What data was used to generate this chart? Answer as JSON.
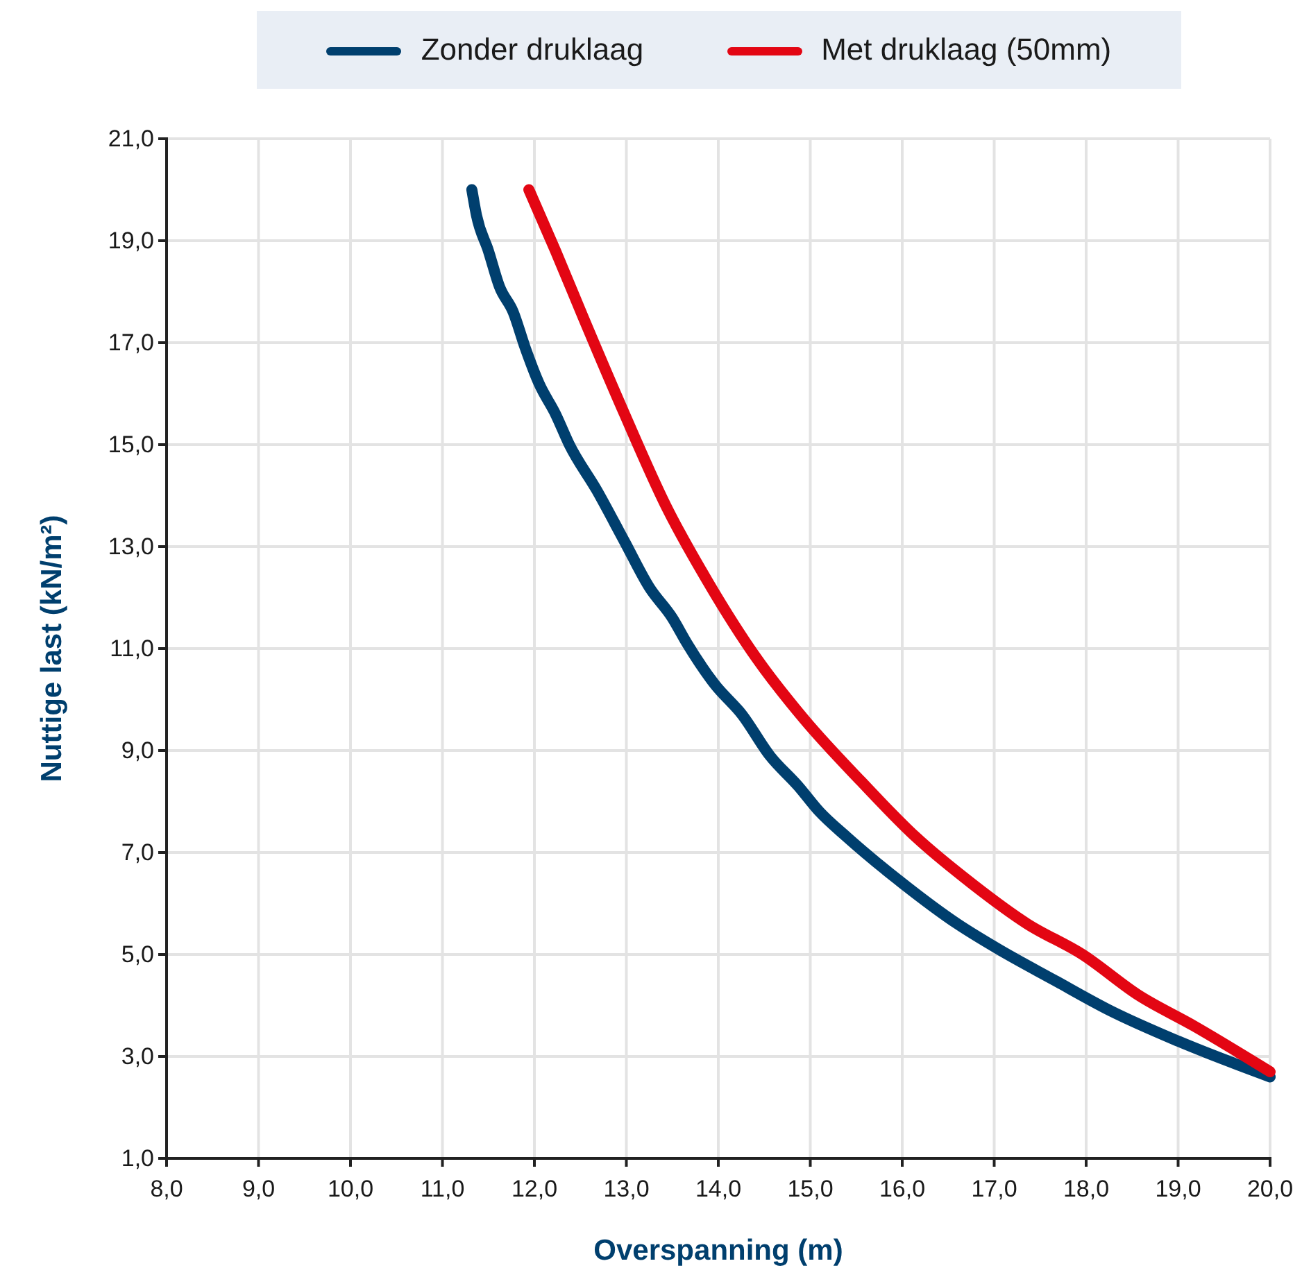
{
  "chart_data": {
    "type": "line",
    "xlabel": "Overspanning (m)",
    "ylabel": "Nuttige last (kN/m²)",
    "xlim": [
      8,
      20
    ],
    "ylim": [
      1,
      21
    ],
    "xticks": [
      {
        "value": 8,
        "label": "8,0"
      },
      {
        "value": 9,
        "label": "9,0"
      },
      {
        "value": 10,
        "label": "10,0"
      },
      {
        "value": 11,
        "label": "11,0"
      },
      {
        "value": 12,
        "label": "12,0"
      },
      {
        "value": 13,
        "label": "13,0"
      },
      {
        "value": 14,
        "label": "14,0"
      },
      {
        "value": 15,
        "label": "15,0"
      },
      {
        "value": 16,
        "label": "16,0"
      },
      {
        "value": 17,
        "label": "17,0"
      },
      {
        "value": 18,
        "label": "18,0"
      },
      {
        "value": 19,
        "label": "19,0"
      },
      {
        "value": 20,
        "label": "20,0"
      }
    ],
    "yticks": [
      {
        "value": 1,
        "label": "1,0"
      },
      {
        "value": 3,
        "label": "3,0"
      },
      {
        "value": 5,
        "label": "5,0"
      },
      {
        "value": 7,
        "label": "7,0"
      },
      {
        "value": 9,
        "label": "9,0"
      },
      {
        "value": 11,
        "label": "11,0"
      },
      {
        "value": 13,
        "label": "13,0"
      },
      {
        "value": 15,
        "label": "15,0"
      },
      {
        "value": 17,
        "label": "17,0"
      },
      {
        "value": 19,
        "label": "19,0"
      },
      {
        "value": 21,
        "label": "21,0"
      }
    ],
    "grid": true,
    "legend": "top",
    "marker": "none",
    "line_style": "solid",
    "series": [
      {
        "name": "Zonder druklaag",
        "color": "#003f6e",
        "x": [
          11.32,
          11.37,
          11.5,
          11.62,
          11.77,
          11.9,
          12.05,
          12.23,
          12.38,
          12.68,
          12.98,
          13.25,
          13.5,
          13.66,
          13.96,
          14.26,
          14.56,
          14.87,
          15.1,
          15.4,
          16.0,
          16.6,
          17.05,
          17.65,
          18.26,
          19.0,
          20.0
        ],
        "values": [
          20.0,
          19.5,
          18.8,
          18.1,
          17.6,
          16.9,
          16.2,
          15.6,
          15.0,
          14.1,
          13.1,
          12.2,
          11.6,
          11.1,
          10.3,
          9.7,
          8.9,
          8.3,
          7.8,
          7.3,
          6.4,
          5.6,
          5.1,
          4.5,
          3.9,
          3.3,
          2.6
        ]
      },
      {
        "name": "Met druklaag (50mm)",
        "color": "#e30613",
        "x": [
          11.94,
          12.23,
          12.53,
          12.98,
          13.43,
          13.89,
          14.42,
          14.94,
          15.55,
          16.15,
          16.75,
          17.36,
          17.96,
          18.57,
          19.17,
          20.0
        ],
        "values": [
          20.0,
          18.8,
          17.5,
          15.6,
          13.8,
          12.3,
          10.8,
          9.6,
          8.4,
          7.3,
          6.4,
          5.6,
          5.0,
          4.2,
          3.6,
          2.7
        ]
      }
    ]
  }
}
